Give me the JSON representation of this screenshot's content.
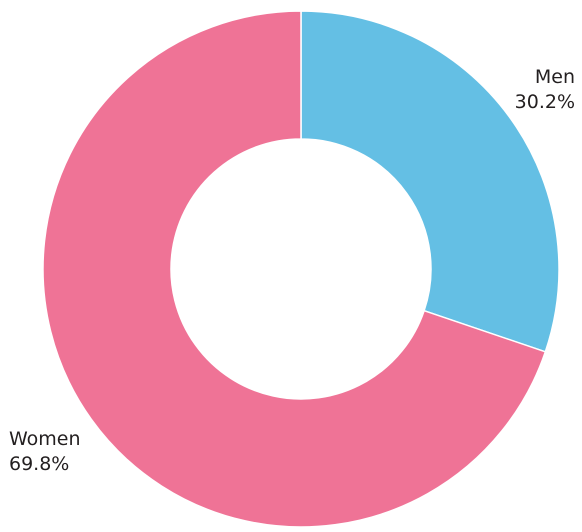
{
  "chart_data": {
    "type": "pie",
    "style": "donut",
    "slices": [
      {
        "label": "Men",
        "value": 30.2,
        "value_label": "30.2%",
        "color": "#64bfe4"
      },
      {
        "label": "Women",
        "value": 69.8,
        "value_label": "69.8%",
        "color": "#ef7396"
      }
    ],
    "start_angle": "12 o'clock",
    "direction": "clockwise",
    "legend": "none"
  }
}
